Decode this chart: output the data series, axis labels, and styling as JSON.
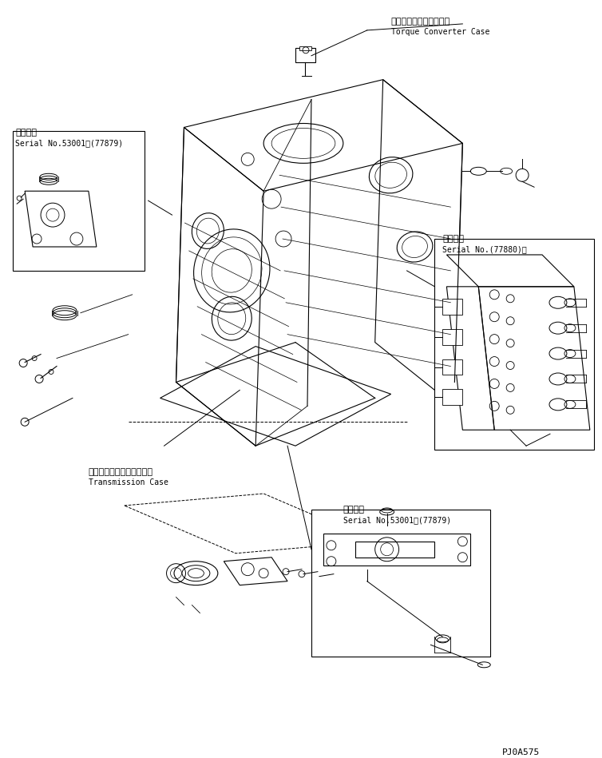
{
  "bg_color": "#ffffff",
  "line_color": "#000000",
  "fig_width": 7.54,
  "fig_height": 9.49,
  "dpi": 100,
  "labels": {
    "torque_converter_jp": "トルクコンバータケース",
    "torque_converter_en": "Torque Converter Case",
    "transmission_jp": "トランスミッションケース",
    "transmission_en": "Transmission Case",
    "serial_top_left_jp": "適用号機",
    "serial_top_left_en": "Serial No.53001～(77879)",
    "serial_bottom_mid_jp": "適用号機",
    "serial_bottom_mid_en": "Serial No.53001～(77879)",
    "serial_right_jp": "適用号機",
    "serial_right_en": "Serial No.(77880)～",
    "part_number": "PJ0A575"
  }
}
